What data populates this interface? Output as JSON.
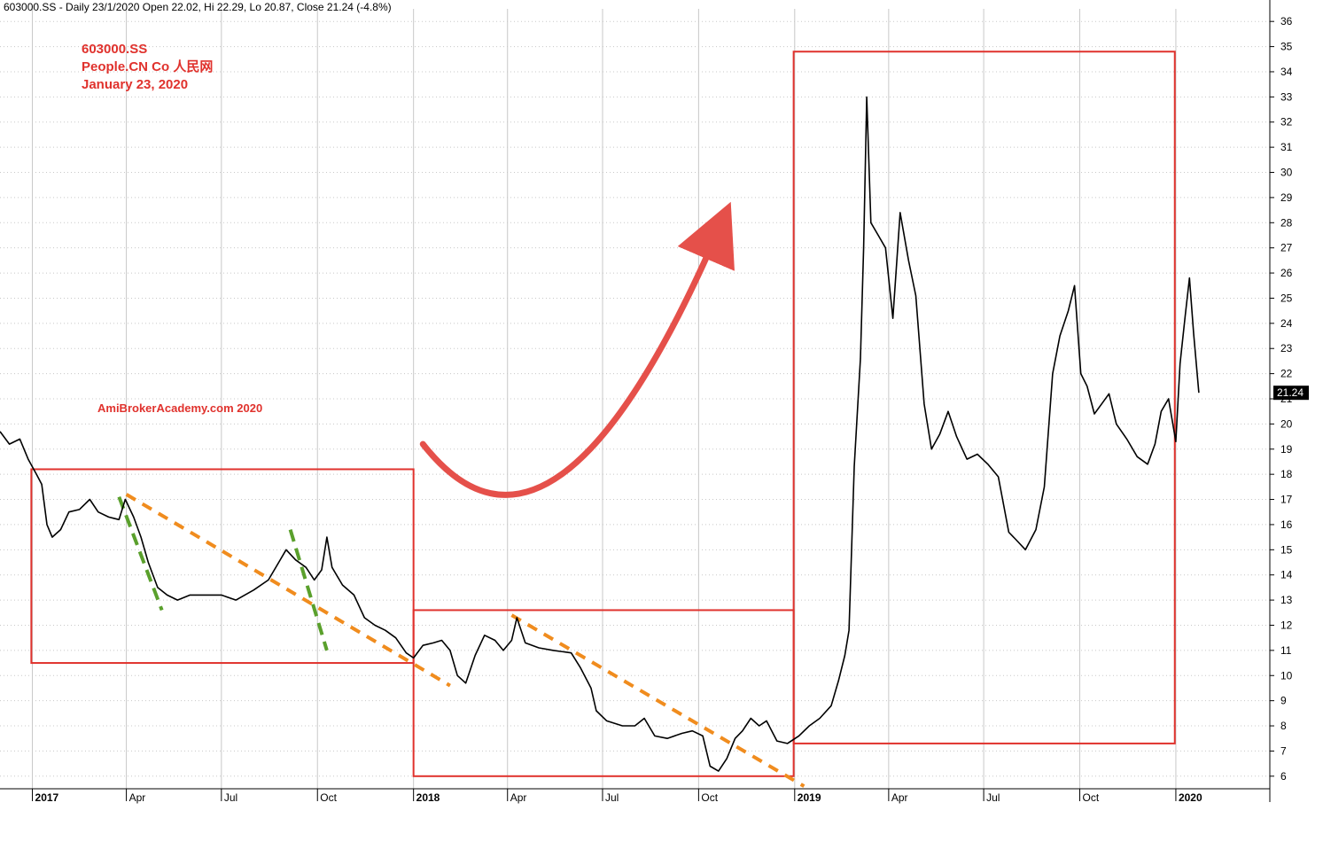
{
  "header": {
    "text": "603000.SS - Daily 23/1/2020 Open 22.02, Hi 22.29, Lo 20.87, Close 21.24 (-4.8%)"
  },
  "annotations": {
    "ticker": "603000.SS",
    "company": "People.CN Co   人民网",
    "date": "January 23, 2020",
    "watermark": "AmiBrokerAcademy.com   2020"
  },
  "colors": {
    "price": "#000000",
    "box": "#e0322d",
    "arrow": "#e5504a",
    "trend_orange": "#f08c1e",
    "trend_green": "#5aa02c",
    "grid": "#c8c8c8",
    "last_label_bg": "#000000"
  },
  "chart_data": {
    "type": "line",
    "title": "603000.SS",
    "x_range": [
      "2016-12-01",
      "2020-03-31"
    ],
    "ylim": [
      5.5,
      36.5
    ],
    "y_ticks": [
      6,
      7,
      8,
      9,
      10,
      11,
      12,
      13,
      14,
      15,
      16,
      17,
      18,
      19,
      20,
      21,
      22,
      23,
      24,
      25,
      26,
      27,
      28,
      29,
      30,
      31,
      32,
      33,
      34,
      35,
      36
    ],
    "x_ticks": [
      {
        "date": "2017-01-01",
        "label": "2017",
        "bold": true
      },
      {
        "date": "2017-04-01",
        "label": "Apr",
        "bold": false
      },
      {
        "date": "2017-07-01",
        "label": "Jul",
        "bold": false
      },
      {
        "date": "2017-10-01",
        "label": "Oct",
        "bold": false
      },
      {
        "date": "2018-01-01",
        "label": "2018",
        "bold": true
      },
      {
        "date": "2018-04-01",
        "label": "Apr",
        "bold": false
      },
      {
        "date": "2018-07-01",
        "label": "Jul",
        "bold": false
      },
      {
        "date": "2018-10-01",
        "label": "Oct",
        "bold": false
      },
      {
        "date": "2019-01-01",
        "label": "2019",
        "bold": true
      },
      {
        "date": "2019-04-01",
        "label": "Apr",
        "bold": false
      },
      {
        "date": "2019-07-01",
        "label": "Jul",
        "bold": false
      },
      {
        "date": "2019-10-01",
        "label": "Oct",
        "bold": false
      },
      {
        "date": "2020-01-01",
        "label": "2020",
        "bold": true
      }
    ],
    "last_price_label": "21.24",
    "last_price": 21.24,
    "series": [
      {
        "points": [
          [
            "2016-12-01",
            19.7
          ],
          [
            "2016-12-10",
            19.2
          ],
          [
            "2016-12-20",
            19.4
          ],
          [
            "2016-12-28",
            18.6
          ],
          [
            "2017-01-05",
            18.0
          ],
          [
            "2017-01-10",
            17.6
          ],
          [
            "2017-01-15",
            16.0
          ],
          [
            "2017-01-20",
            15.5
          ],
          [
            "2017-01-28",
            15.8
          ],
          [
            "2017-02-05",
            16.5
          ],
          [
            "2017-02-15",
            16.6
          ],
          [
            "2017-02-25",
            17.0
          ],
          [
            "2017-03-05",
            16.5
          ],
          [
            "2017-03-15",
            16.3
          ],
          [
            "2017-03-25",
            16.2
          ],
          [
            "2017-03-31",
            17.0
          ],
          [
            "2017-04-08",
            16.3
          ],
          [
            "2017-04-15",
            15.5
          ],
          [
            "2017-04-22",
            14.5
          ],
          [
            "2017-05-01",
            13.5
          ],
          [
            "2017-05-10",
            13.2
          ],
          [
            "2017-05-20",
            13.0
          ],
          [
            "2017-06-01",
            13.2
          ],
          [
            "2017-06-15",
            13.2
          ],
          [
            "2017-07-01",
            13.2
          ],
          [
            "2017-07-15",
            13.0
          ],
          [
            "2017-08-01",
            13.4
          ],
          [
            "2017-08-15",
            13.8
          ],
          [
            "2017-08-25",
            14.5
          ],
          [
            "2017-09-01",
            15.0
          ],
          [
            "2017-09-10",
            14.6
          ],
          [
            "2017-09-20",
            14.3
          ],
          [
            "2017-09-28",
            13.8
          ],
          [
            "2017-10-05",
            14.2
          ],
          [
            "2017-10-10",
            15.5
          ],
          [
            "2017-10-15",
            14.3
          ],
          [
            "2017-10-25",
            13.6
          ],
          [
            "2017-11-05",
            13.2
          ],
          [
            "2017-11-15",
            12.3
          ],
          [
            "2017-11-25",
            12.0
          ],
          [
            "2017-12-05",
            11.8
          ],
          [
            "2017-12-15",
            11.5
          ],
          [
            "2017-12-25",
            10.9
          ],
          [
            "2018-01-01",
            10.7
          ],
          [
            "2018-01-10",
            11.2
          ],
          [
            "2018-01-20",
            11.3
          ],
          [
            "2018-01-28",
            11.4
          ],
          [
            "2018-02-05",
            11.0
          ],
          [
            "2018-02-12",
            10.0
          ],
          [
            "2018-02-20",
            9.7
          ],
          [
            "2018-03-01",
            10.8
          ],
          [
            "2018-03-10",
            11.6
          ],
          [
            "2018-03-20",
            11.4
          ],
          [
            "2018-03-28",
            11.0
          ],
          [
            "2018-04-05",
            11.4
          ],
          [
            "2018-04-10",
            12.3
          ],
          [
            "2018-04-18",
            11.3
          ],
          [
            "2018-05-01",
            11.1
          ],
          [
            "2018-05-15",
            11.0
          ],
          [
            "2018-06-01",
            10.9
          ],
          [
            "2018-06-10",
            10.3
          ],
          [
            "2018-06-20",
            9.5
          ],
          [
            "2018-06-25",
            8.6
          ],
          [
            "2018-07-05",
            8.2
          ],
          [
            "2018-07-20",
            8.0
          ],
          [
            "2018-08-01",
            8.0
          ],
          [
            "2018-08-10",
            8.3
          ],
          [
            "2018-08-20",
            7.6
          ],
          [
            "2018-09-01",
            7.5
          ],
          [
            "2018-09-15",
            7.7
          ],
          [
            "2018-09-25",
            7.8
          ],
          [
            "2018-10-05",
            7.6
          ],
          [
            "2018-10-12",
            6.4
          ],
          [
            "2018-10-20",
            6.2
          ],
          [
            "2018-10-28",
            6.7
          ],
          [
            "2018-11-05",
            7.5
          ],
          [
            "2018-11-12",
            7.8
          ],
          [
            "2018-11-20",
            8.3
          ],
          [
            "2018-11-28",
            8.0
          ],
          [
            "2018-12-05",
            8.2
          ],
          [
            "2018-12-15",
            7.4
          ],
          [
            "2018-12-25",
            7.3
          ],
          [
            "2019-01-05",
            7.6
          ],
          [
            "2019-01-15",
            8.0
          ],
          [
            "2019-01-25",
            8.3
          ],
          [
            "2019-02-05",
            8.8
          ],
          [
            "2019-02-12",
            9.8
          ],
          [
            "2019-02-18",
            10.8
          ],
          [
            "2019-02-22",
            11.8
          ],
          [
            "2019-02-27",
            18.3
          ],
          [
            "2019-03-05",
            22.6
          ],
          [
            "2019-03-08",
            27.0
          ],
          [
            "2019-03-11",
            33.0
          ],
          [
            "2019-03-15",
            28.0
          ],
          [
            "2019-03-22",
            27.5
          ],
          [
            "2019-03-29",
            27.0
          ],
          [
            "2019-04-05",
            24.2
          ],
          [
            "2019-04-12",
            28.4
          ],
          [
            "2019-04-20",
            26.5
          ],
          [
            "2019-04-27",
            25.1
          ],
          [
            "2019-05-05",
            20.8
          ],
          [
            "2019-05-12",
            19.0
          ],
          [
            "2019-05-20",
            19.6
          ],
          [
            "2019-05-28",
            20.5
          ],
          [
            "2019-06-05",
            19.5
          ],
          [
            "2019-06-15",
            18.6
          ],
          [
            "2019-06-25",
            18.8
          ],
          [
            "2019-07-05",
            18.4
          ],
          [
            "2019-07-15",
            17.9
          ],
          [
            "2019-07-25",
            15.7
          ],
          [
            "2019-08-01",
            15.4
          ],
          [
            "2019-08-10",
            15.0
          ],
          [
            "2019-08-20",
            15.8
          ],
          [
            "2019-08-28",
            17.5
          ],
          [
            "2019-09-05",
            22.0
          ],
          [
            "2019-09-12",
            23.5
          ],
          [
            "2019-09-20",
            24.5
          ],
          [
            "2019-09-26",
            25.5
          ],
          [
            "2019-10-02",
            22.0
          ],
          [
            "2019-10-08",
            21.5
          ],
          [
            "2019-10-15",
            20.4
          ],
          [
            "2019-10-22",
            20.8
          ],
          [
            "2019-10-29",
            21.2
          ],
          [
            "2019-11-05",
            20.0
          ],
          [
            "2019-11-15",
            19.4
          ],
          [
            "2019-11-25",
            18.7
          ],
          [
            "2019-12-05",
            18.4
          ],
          [
            "2019-12-12",
            19.2
          ],
          [
            "2019-12-18",
            20.5
          ],
          [
            "2019-12-25",
            21.0
          ],
          [
            "2020-01-01",
            19.3
          ],
          [
            "2020-01-05",
            22.4
          ],
          [
            "2020-01-10",
            24.3
          ],
          [
            "2020-01-14",
            25.8
          ],
          [
            "2020-01-18",
            23.6
          ],
          [
            "2020-01-23",
            21.24
          ]
        ]
      }
    ],
    "rectangles": [
      {
        "from": "2016-12-31",
        "to": "2018-01-01",
        "low": 10.5,
        "high": 18.2
      },
      {
        "from": "2018-01-01",
        "to": "2018-12-31",
        "low": 6.0,
        "high": 12.6
      },
      {
        "from": "2018-12-31",
        "to": "2019-12-31",
        "low": 7.3,
        "high": 34.8
      }
    ],
    "trend_lines": [
      {
        "color": "orange",
        "from": [
          "2017-04-01",
          17.2
        ],
        "to": [
          "2018-02-05",
          9.6
        ]
      },
      {
        "color": "orange",
        "from": [
          "2018-04-05",
          12.4
        ],
        "to": [
          "2019-01-10",
          5.6
        ]
      },
      {
        "color": "green",
        "from": [
          "2017-03-25",
          17.1
        ],
        "to": [
          "2017-05-05",
          12.6
        ]
      },
      {
        "color": "green",
        "from": [
          "2017-09-05",
          15.8
        ],
        "to": [
          "2017-10-10",
          11.0
        ]
      }
    ],
    "arrow": {
      "path": [
        [
          "2018-01-10",
          19.2
        ],
        [
          "2018-05-15",
          16.8
        ],
        [
          "2018-10-20",
          27.7
        ]
      ]
    }
  }
}
